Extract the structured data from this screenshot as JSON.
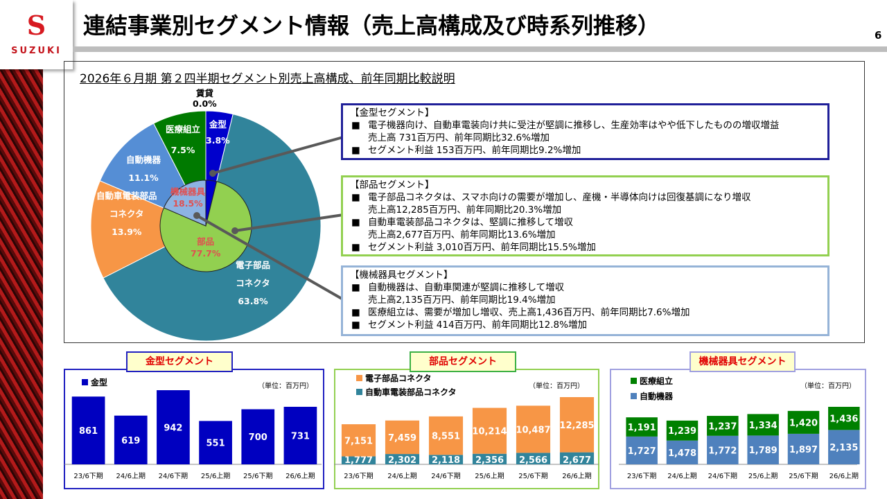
{
  "header": {
    "title": "連結事業別セグメント情報（売上高構成及び時系列推移）",
    "page_number": "6",
    "logo_text": "SUZUKI"
  },
  "subtitle": "2026年６月期 第２四半期セグメント別売上高構成、前年同期比較説明",
  "pie": {
    "outer": [
      {
        "name": "金型",
        "label": "金型",
        "pct": "3.8%",
        "value": 3.8,
        "color": "#0000cc"
      },
      {
        "name": "電子部品コネクタ",
        "label": "電子部品",
        "label2": "コネクタ",
        "pct": "63.8%",
        "value": 63.8,
        "color": "#31849b"
      },
      {
        "name": "自動車電装部品コネクタ",
        "label": "自動車電装部品",
        "label2": "コネクタ",
        "pct": "13.9%",
        "value": 13.9,
        "color": "#f79646"
      },
      {
        "name": "自動機器",
        "label": "自動機器",
        "pct": "11.1%",
        "value": 11.1,
        "color": "#558ed5"
      },
      {
        "name": "医療組立",
        "label": "医療組立",
        "pct": "7.5%",
        "value": 7.5,
        "color": "#007a00"
      },
      {
        "name": "賃貸",
        "label": "賃貸",
        "pct": "0.0%",
        "value": 0.0,
        "color": "#999999"
      }
    ],
    "inner": [
      {
        "name": "金型",
        "value": 3.8,
        "color": "#0000cc"
      },
      {
        "name": "部品",
        "label": "部品",
        "pct": "77.7%",
        "value": 77.7,
        "color": "#92d050"
      },
      {
        "name": "機械器具",
        "label": "機械器具",
        "pct": "18.5%",
        "value": 18.5,
        "color": "#8db3e2"
      }
    ]
  },
  "boxes": [
    {
      "heading": "【金型セグメント】",
      "items": [
        [
          "電子機器向け、自動車電装向け共に受注が堅調に推移し、生産効率はやや低下したものの増収増益",
          "売上高 731百万円、前年同期比32.6%増加"
        ],
        [
          "セグメント利益 153百万円、前年同期比9.2%増加"
        ]
      ]
    },
    {
      "heading": "【部品セグメント】",
      "items": [
        [
          "電子部品コネクタは、スマホ向けの需要が増加し、産機・半導体向けは回復基調になり増収",
          "売上高12,285百万円、前年同期比20.3%増加"
        ],
        [
          "自動車電装部品コネクタは、堅調に推移して増収",
          "売上高2,677百万円、前年同期比13.6%増加"
        ],
        [
          "セグメント利益 3,010百万円、前年同期比15.5%増加"
        ]
      ]
    },
    {
      "heading": "【機械器具セグメント】",
      "items": [
        [
          "自動機器は、自動車関連が堅調に推移して増収",
          "売上高2,135百万円、前年同期比19.4%増加"
        ],
        [
          "医療組立は、需要が増加し増収、売上高1,436百万円、前年同期比7.6%増加"
        ],
        [
          "セグメント利益 414百万円、前年同期比12.8%増加"
        ]
      ]
    }
  ],
  "bullet": "■",
  "chart_data": [
    {
      "type": "bar",
      "title": "金型セグメント",
      "unit": "（単位：百万円）",
      "categories": [
        "23/6下期",
        "24/6上期",
        "24/6下期",
        "25/6上期",
        "25/6下期",
        "26/6上期"
      ],
      "series": [
        {
          "name": "金型",
          "values": [
            861,
            619,
            942,
            551,
            700,
            731
          ],
          "labels": [
            "861",
            "619",
            "942",
            "551",
            "700",
            "731"
          ],
          "color": "#0000c0"
        }
      ]
    },
    {
      "type": "bar",
      "stacked": true,
      "title": "部品セグメント",
      "unit": "（単位：百万円）",
      "categories": [
        "23/6下期",
        "24/6上期",
        "24/6下期",
        "25/6上期",
        "25/6下期",
        "26/6上期"
      ],
      "series": [
        {
          "name": "自動車電装部品コネクタ",
          "values": [
            1777,
            2302,
            2118,
            2356,
            2566,
            2677
          ],
          "labels": [
            "1,777",
            "2,302",
            "2,118",
            "2,356",
            "2,566",
            "2,677"
          ],
          "color": "#31849b"
        },
        {
          "name": "電子部品コネクタ",
          "values": [
            7151,
            7459,
            8551,
            10214,
            10487,
            12285
          ],
          "labels": [
            "7,151",
            "7,459",
            "8,551",
            "10,214",
            "10,487",
            "12,285"
          ],
          "color": "#f79646"
        }
      ]
    },
    {
      "type": "bar",
      "stacked": true,
      "title": "機械器具セグメント",
      "unit": "（単位：百万円）",
      "categories": [
        "23/6下期",
        "24/6上期",
        "24/6下期",
        "25/6上期",
        "25/6下期",
        "26/6上期"
      ],
      "series": [
        {
          "name": "自動機器",
          "values": [
            1727,
            1478,
            1772,
            1789,
            1897,
            2135
          ],
          "labels": [
            "1,727",
            "1,478",
            "1,772",
            "1,789",
            "1,897",
            "2,135"
          ],
          "color": "#4f81bd"
        },
        {
          "name": "医療組立",
          "values": [
            1191,
            1239,
            1237,
            1334,
            1420,
            1436
          ],
          "labels": [
            "1,191",
            "1,239",
            "1,237",
            "1,334",
            "1,420",
            "1,436"
          ],
          "color": "#008000"
        }
      ]
    }
  ]
}
